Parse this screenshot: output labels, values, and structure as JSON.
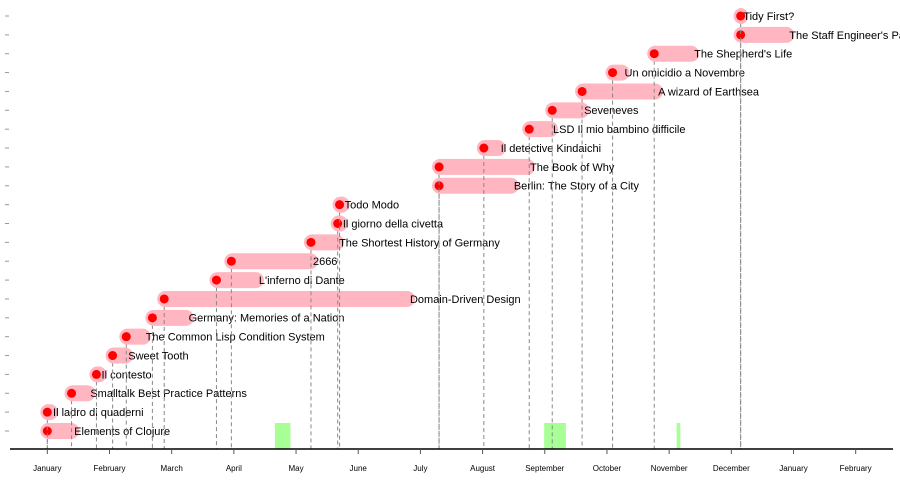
{
  "chart_data": {
    "type": "timeline",
    "categories": [
      "Elements of Clojure",
      "Il ladro di quaderni",
      "Smalltalk Best Practice Patterns",
      "Il contesto",
      "Sweet Tooth",
      "The Common Lisp Condition System",
      "Germany: Memories of a Nation",
      "Domain-Driven Design",
      "L'inferno di Dante",
      "2666",
      "The Shortest History of Germany",
      "Il giorno della civetta",
      "Todo Modo",
      "Berlin: The Story of a City",
      "The Book of Why",
      "Il detective Kindaichi",
      "LSD Il mio bambino difficile",
      "Seveneves",
      "A wizard of Earthsea",
      "Un omicidio a Novembre",
      "The Shepherd's Life",
      "The Staff Engineer's Path",
      "Tidy First?"
    ],
    "start": [
      0,
      0,
      0.39,
      0.79,
      1.05,
      1.27,
      1.69,
      1.88,
      2.72,
      2.96,
      4.24,
      4.67,
      4.7,
      6.3,
      6.3,
      7.02,
      7.75,
      8.12,
      8.6,
      9.09,
      9.76,
      11.15,
      11.15
    ],
    "end": [
      0.4,
      0.06,
      0.66,
      0.84,
      1.27,
      1.55,
      2.24,
      5.8,
      3.37,
      4.24,
      4.66,
      4.72,
      4.75,
      7.47,
      7.73,
      7.26,
      8.1,
      8.6,
      9.79,
      9.25,
      10.37,
      11.9,
      11.16
    ],
    "bar_color": "#ffb6c1",
    "dot_color": "#ff0000",
    "highlights": {
      "color": "#a8ff96",
      "start": [
        3.66,
        7.99,
        10.12
      ],
      "end": [
        3.91,
        8.34,
        10.18
      ]
    },
    "xlim": [
      -0.6,
      13.6
    ],
    "xticks": [
      {
        "value": 0,
        "label": "January"
      },
      {
        "value": 1,
        "label": "February"
      },
      {
        "value": 2,
        "label": "March"
      },
      {
        "value": 3,
        "label": "April"
      },
      {
        "value": 4,
        "label": "May"
      },
      {
        "value": 5,
        "label": "June"
      },
      {
        "value": 6,
        "label": "July"
      },
      {
        "value": 7,
        "label": "August"
      },
      {
        "value": 8,
        "label": "September"
      },
      {
        "value": 9,
        "label": "October"
      },
      {
        "value": 10,
        "label": "November"
      },
      {
        "value": 11,
        "label": "December"
      },
      {
        "value": 12,
        "label": "January"
      },
      {
        "value": 13,
        "label": "February"
      }
    ]
  }
}
